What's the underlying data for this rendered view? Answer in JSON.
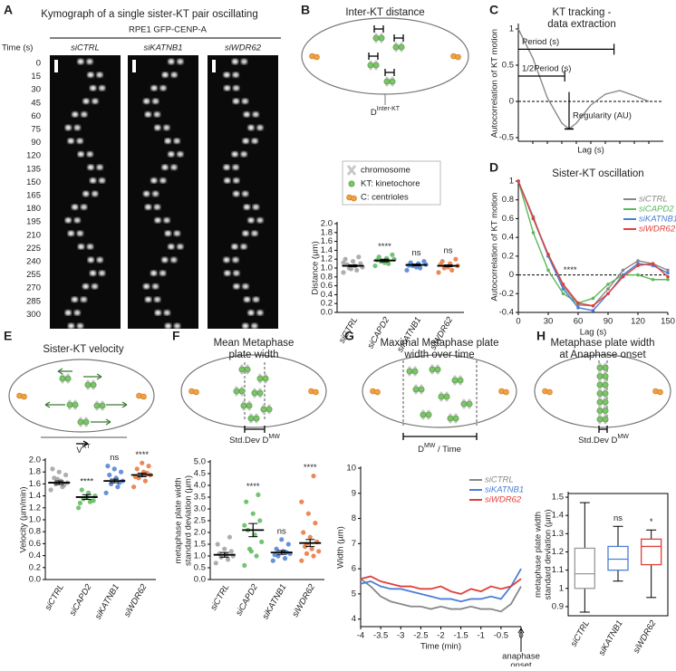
{
  "panels": [
    "A",
    "B",
    "C",
    "D",
    "E",
    "F",
    "G",
    "H"
  ],
  "kymograph": {
    "title": "Kymograph of a single sister-KT pair oscillating",
    "cell_line": "RPE1 GFP-CENP-A",
    "time_label": "Time (s)",
    "conditions": [
      "siCTRL",
      "siKATNB1",
      "siWDR62"
    ],
    "times": [
      0,
      15,
      30,
      45,
      60,
      75,
      90,
      120,
      135,
      150,
      165,
      180,
      195,
      210,
      225,
      240,
      255,
      270,
      285,
      300
    ]
  },
  "schematics": {
    "inter_kt": {
      "label": "D",
      "sup": "Inter-KT",
      "legend": [
        "chromosome",
        "KT: kinetochore",
        "C: centrioles"
      ]
    },
    "velocity": {
      "label": "V",
      "sup": "KT"
    },
    "mean_width": {
      "label": "Std.Dev D",
      "sup": "MW"
    },
    "max_width": {
      "label": "D",
      "sup": "MW",
      "suffix": " / Time"
    },
    "anaphase_width": {
      "label": "Std.Dev D",
      "sup": "MW"
    }
  },
  "chart_data": [
    {
      "type": "dot",
      "title": [
        "Inter-KT distance"
      ],
      "ylabel": [
        "Distance (µm)"
      ],
      "categories": [
        "siCTRL",
        "siCAPD2",
        "siKATNB1",
        "siWDR62"
      ],
      "colors": [
        "#a0a0a0",
        "#5cb85c",
        "#4a7fd4",
        "#e8743b"
      ],
      "points": [
        [
          0.9,
          0.95,
          1.0,
          1.02,
          1.05,
          1.08,
          1.1,
          1.15,
          1.2,
          1.25,
          0.98,
          1.12
        ],
        [
          1.05,
          1.1,
          1.15,
          1.2,
          1.22,
          1.25,
          1.3,
          1.12,
          1.18
        ],
        [
          0.95,
          1.0,
          1.05,
          1.08,
          1.1,
          1.12,
          1.15,
          1.02,
          1.06
        ],
        [
          0.9,
          0.95,
          1.0,
          1.05,
          1.1,
          1.15,
          1.2,
          1.02,
          1.08
        ]
      ],
      "means": [
        1.05,
        1.17,
        1.07,
        1.05
      ],
      "sems": [
        0.02,
        0.03,
        0.02,
        0.02
      ],
      "annotations": [
        null,
        "****",
        "ns",
        "ns"
      ],
      "ylim": [
        0,
        2
      ],
      "yticks": [
        {
          "value": 0,
          "label": "0.0"
        },
        0.2,
        0.4,
        0.6,
        0.8,
        {
          "value": 1,
          "label": "1.0"
        },
        1.2,
        1.4,
        1.6,
        1.8,
        {
          "value": 2,
          "label": "2.0"
        }
      ]
    },
    {
      "type": "line",
      "title": [
        "KT tracking -",
        "data extraction"
      ],
      "ylabel": [
        "Autocorrelation of KT motion"
      ],
      "xlabel": "Lag (s)",
      "x": [
        0,
        1,
        2,
        3,
        3.5,
        4,
        5,
        6,
        7,
        8,
        9
      ],
      "xlim": [
        0,
        10
      ],
      "series": [
        {
          "color": "#888888",
          "values": [
            1,
            0.6,
            0.05,
            -0.3,
            -0.38,
            -0.3,
            -0.05,
            0.1,
            0.15,
            0.08,
            0.0
          ]
        }
      ],
      "reference_line": 0,
      "annotations": [
        "Period (s)",
        "1/2Period (s)",
        "Regularity (AU)"
      ],
      "ylim": [
        -0.55,
        1.05
      ],
      "yticks": [
        -0.5,
        0,
        0.5,
        1
      ]
    },
    {
      "type": "line",
      "title": [
        "Sister-KT oscillation"
      ],
      "ylabel": [
        "Autocorrelation of KT motion"
      ],
      "xlabel": "Lag (s)",
      "markers": true,
      "x": [
        0,
        15,
        30,
        45,
        60,
        75,
        90,
        105,
        120,
        135,
        150
      ],
      "xlim": [
        0,
        150
      ],
      "xticks": [
        0,
        30,
        60,
        90,
        120,
        150
      ],
      "series": [
        {
          "name": "siCTRL",
          "color": "#888888",
          "values": [
            1,
            0.62,
            0.2,
            -0.12,
            -0.32,
            -0.33,
            -0.15,
            0.05,
            0.15,
            0.12,
            0.05
          ]
        },
        {
          "name": "siCAPD2",
          "color": "#5cb85c",
          "values": [
            1,
            0.45,
            0.05,
            -0.2,
            -0.3,
            -0.25,
            -0.1,
            0.0,
            0.0,
            -0.05,
            -0.05
          ]
        },
        {
          "name": "siKATNB1",
          "color": "#4a7fd4",
          "values": [
            1,
            0.6,
            0.2,
            -0.15,
            -0.35,
            -0.38,
            -0.2,
            0.0,
            0.12,
            0.1,
            0.02
          ]
        },
        {
          "name": "siWDR62",
          "color": "#e0403a",
          "values": [
            1,
            0.6,
            0.22,
            -0.1,
            -0.3,
            -0.33,
            -0.2,
            -0.02,
            0.1,
            0.12,
            -0.02
          ]
        }
      ],
      "reference_line": 0,
      "annotations": [
        "****"
      ],
      "ylim": [
        -0.4,
        1
      ],
      "yticks": [
        -0.4,
        -0.2,
        0,
        0.2,
        0.4,
        0.6,
        0.8,
        1
      ]
    },
    {
      "type": "dot",
      "title": [
        "Sister-KT velocity"
      ],
      "ylabel": [
        "Velocity (µm/min)"
      ],
      "categories": [
        "siCTRL",
        "siCAPD2",
        "siKATNB1",
        "siWDR62"
      ],
      "colors": [
        "#a0a0a0",
        "#5cb85c",
        "#4a7fd4",
        "#e8743b"
      ],
      "points": [
        [
          1.5,
          1.55,
          1.6,
          1.62,
          1.65,
          1.7,
          1.75,
          1.8,
          1.85,
          1.58,
          1.68
        ],
        [
          1.2,
          1.3,
          1.35,
          1.4,
          1.45,
          1.5,
          1.32,
          1.38,
          1.28
        ],
        [
          1.45,
          1.55,
          1.6,
          1.65,
          1.7,
          1.75,
          1.8,
          1.85,
          1.9,
          1.62
        ],
        [
          1.55,
          1.65,
          1.7,
          1.75,
          1.8,
          1.85,
          1.9,
          1.95,
          1.72,
          1.78
        ]
      ],
      "means": [
        1.62,
        1.38,
        1.65,
        1.75
      ],
      "sems": [
        0.03,
        0.04,
        0.03,
        0.03
      ],
      "annotations": [
        null,
        "****",
        "ns",
        "****"
      ],
      "ylim": [
        0,
        2
      ],
      "yticks": [
        {
          "value": 0,
          "label": "0.0"
        },
        0.2,
        0.4,
        0.6,
        0.8,
        {
          "value": 1,
          "label": "1.0"
        },
        1.2,
        1.4,
        1.6,
        1.8,
        {
          "value": 2,
          "label": "2.0"
        }
      ]
    },
    {
      "type": "dot",
      "title": [
        "Mean Metaphase",
        "plate width"
      ],
      "ylabel": [
        "metaphase plate width",
        "standard deviation (µm)"
      ],
      "categories": [
        "siCTRL",
        "siCAPD2",
        "siKATNB1",
        "siWDR62"
      ],
      "colors": [
        "#a0a0a0",
        "#5cb85c",
        "#4a7fd4",
        "#e8743b"
      ],
      "points": [
        [
          0.7,
          0.85,
          0.95,
          1.0,
          1.05,
          1.1,
          1.2,
          1.3,
          1.5,
          1.8
        ],
        [
          0.6,
          1.0,
          1.3,
          1.6,
          1.9,
          2.1,
          2.5,
          2.8,
          3.3,
          3.6,
          1.2,
          2.3
        ],
        [
          0.8,
          0.9,
          1.0,
          1.1,
          1.2,
          1.3,
          1.5,
          1.7,
          1.05,
          1.15
        ],
        [
          0.8,
          1.0,
          1.1,
          1.2,
          1.3,
          1.4,
          1.6,
          1.8,
          2.0,
          2.4,
          2.8,
          3.3,
          4.4,
          1.5
        ]
      ],
      "means": [
        1.05,
        2.1,
        1.15,
        1.55
      ],
      "sems": [
        0.1,
        0.28,
        0.08,
        0.15
      ],
      "annotations": [
        null,
        "****",
        "ns",
        "****"
      ],
      "ylim": [
        0,
        5
      ],
      "yticks": [
        {
          "value": 0,
          "label": "0.0"
        },
        0.5,
        {
          "value": 1,
          "label": "1.0"
        },
        1.5,
        {
          "value": 2,
          "label": "2.0"
        },
        2.5,
        {
          "value": 3,
          "label": "3.0"
        },
        3.5,
        {
          "value": 4,
          "label": "4.0"
        },
        4.5,
        {
          "value": 5,
          "label": "5.0"
        }
      ]
    },
    {
      "type": "line",
      "title": [
        "Maximal Metaphase plate",
        "width over time"
      ],
      "ylabel": [
        "Width (µm)"
      ],
      "xlabel": "Time (min)",
      "x": [
        -4,
        -3.75,
        -3.5,
        -3.25,
        -3,
        -2.75,
        -2.5,
        -2.25,
        -2,
        -1.75,
        -1.5,
        -1.25,
        -1,
        -0.75,
        -0.5,
        -0.25,
        0
      ],
      "xlim": [
        -4,
        0
      ],
      "xticks": [
        -4,
        -3.5,
        -3,
        -2.5,
        -2,
        -1.5,
        -1,
        -0.5,
        0
      ],
      "series": [
        {
          "name": "siCTRL",
          "color": "#888888",
          "values": [
            5.6,
            5.3,
            4.9,
            4.7,
            4.6,
            4.5,
            4.5,
            4.4,
            4.5,
            4.4,
            4.4,
            4.5,
            4.4,
            4.4,
            4.3,
            4.6,
            5.3
          ]
        },
        {
          "name": "siKATNB1",
          "color": "#4a7fd4",
          "values": [
            5.4,
            5.5,
            5.3,
            5.2,
            5.2,
            5.1,
            5.0,
            4.9,
            4.8,
            4.8,
            4.7,
            4.8,
            4.8,
            4.9,
            4.8,
            5.3,
            6.0
          ]
        },
        {
          "name": "siWDR62",
          "color": "#e0403a",
          "values": [
            5.6,
            5.7,
            5.5,
            5.4,
            5.3,
            5.3,
            5.2,
            5.2,
            5.3,
            5.1,
            5.0,
            5.2,
            5.1,
            5.3,
            5.2,
            5.3,
            5.6
          ]
        }
      ],
      "annotations": [
        "anaphase",
        "onset"
      ],
      "ylim": [
        3.7,
        10
      ],
      "yticks": [
        4,
        5,
        6,
        7,
        8,
        9,
        10
      ]
    },
    {
      "type": "box",
      "title": [
        "Metaphase plate width",
        "at Anaphase onset"
      ],
      "ylabel": [
        "metaphase plate width",
        "standard deviation (µm)"
      ],
      "categories": [
        "siCTRL",
        "siKATNB1",
        "siWDR62"
      ],
      "colors": [
        "#999999",
        "#4a7fd4",
        "#e0403a"
      ],
      "boxes": [
        {
          "min": 0.87,
          "q1": 1.0,
          "median": 1.08,
          "q3": 1.22,
          "max": 1.47
        },
        {
          "min": 1.04,
          "q1": 1.1,
          "median": 1.16,
          "q3": 1.23,
          "max": 1.34
        },
        {
          "min": 0.95,
          "q1": 1.13,
          "median": 1.23,
          "q3": 1.27,
          "max": 1.32
        }
      ],
      "annotations": [
        null,
        "ns",
        "*"
      ],
      "ylim": [
        0.85,
        1.52
      ],
      "yticks": [
        0.9,
        1,
        1.1,
        1.2,
        1.3,
        1.4,
        1.5
      ]
    }
  ]
}
